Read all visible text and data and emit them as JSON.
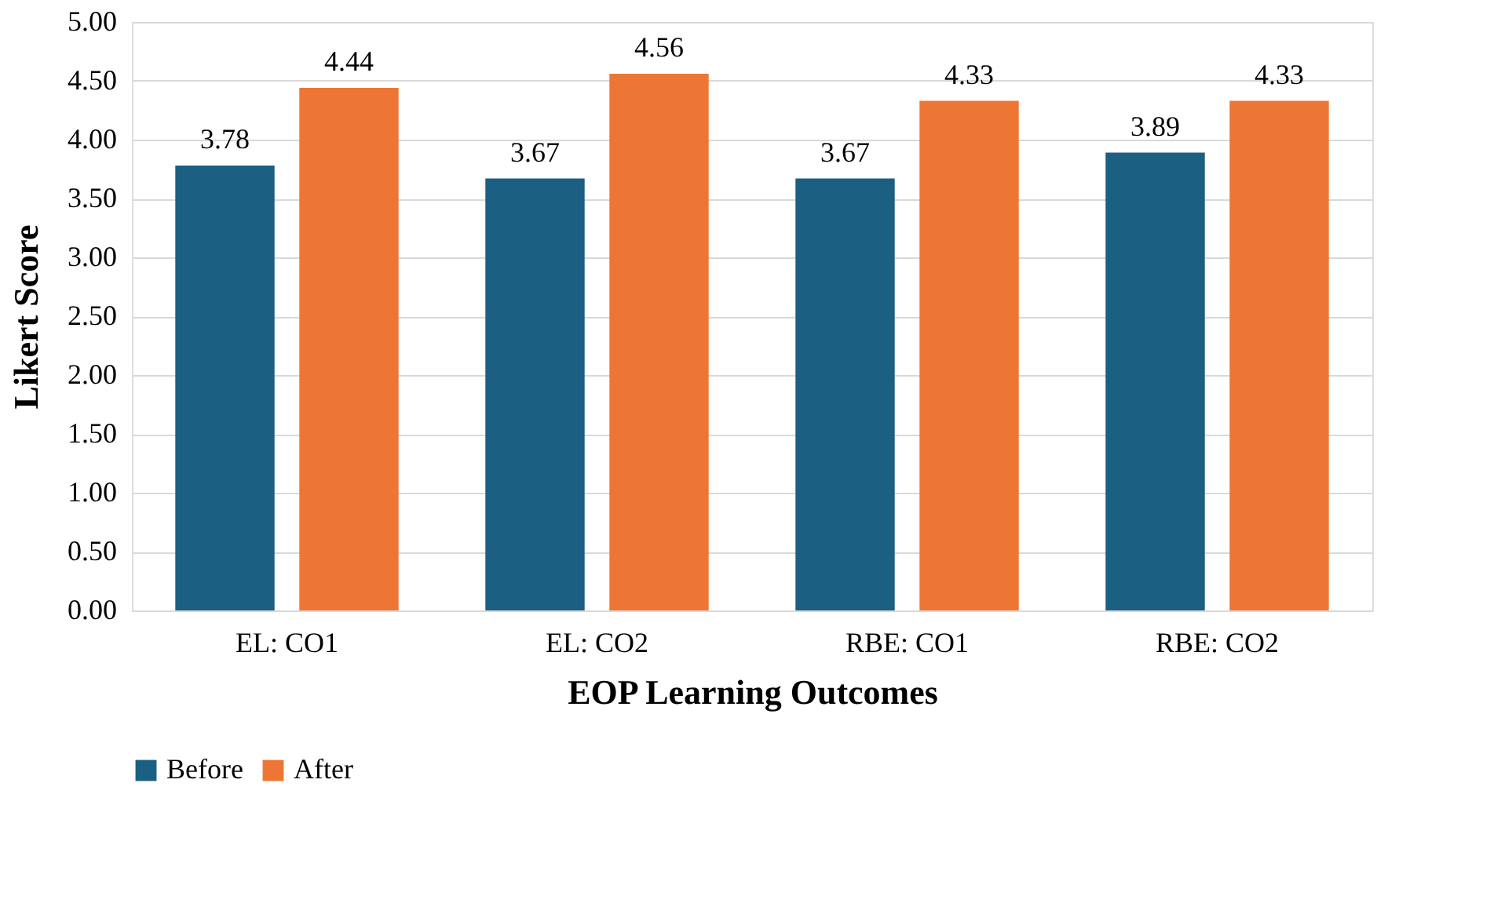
{
  "chart_data": {
    "type": "bar",
    "xlabel": "EOP Learning Outcomes",
    "ylabel": "Likert Score",
    "categories": [
      "EL: CO1",
      "EL: CO2",
      "RBE: CO1",
      "RBE: CO2"
    ],
    "series": [
      {
        "name": "Before",
        "color": "#1b5f82",
        "values": [
          3.78,
          3.67,
          3.67,
          3.89
        ]
      },
      {
        "name": "After",
        "color": "#ed7634",
        "values": [
          4.44,
          4.56,
          4.33,
          4.33
        ]
      }
    ],
    "ylim": [
      0,
      5
    ],
    "yticks": [
      {
        "value": 0,
        "label": "0.00"
      },
      {
        "value": 0.5,
        "label": "0.50"
      },
      {
        "value": 1,
        "label": "1.00"
      },
      {
        "value": 1.5,
        "label": "1.50"
      },
      {
        "value": 2,
        "label": "2.00"
      },
      {
        "value": 2.5,
        "label": "2.50"
      },
      {
        "value": 3,
        "label": "3.00"
      },
      {
        "value": 3.5,
        "label": "3.50"
      },
      {
        "value": 4,
        "label": "4.00"
      },
      {
        "value": 4.5,
        "label": "4.50"
      },
      {
        "value": 5,
        "label": "5.00"
      }
    ],
    "grid": "y",
    "legend": "bottom",
    "data_labels": true
  }
}
